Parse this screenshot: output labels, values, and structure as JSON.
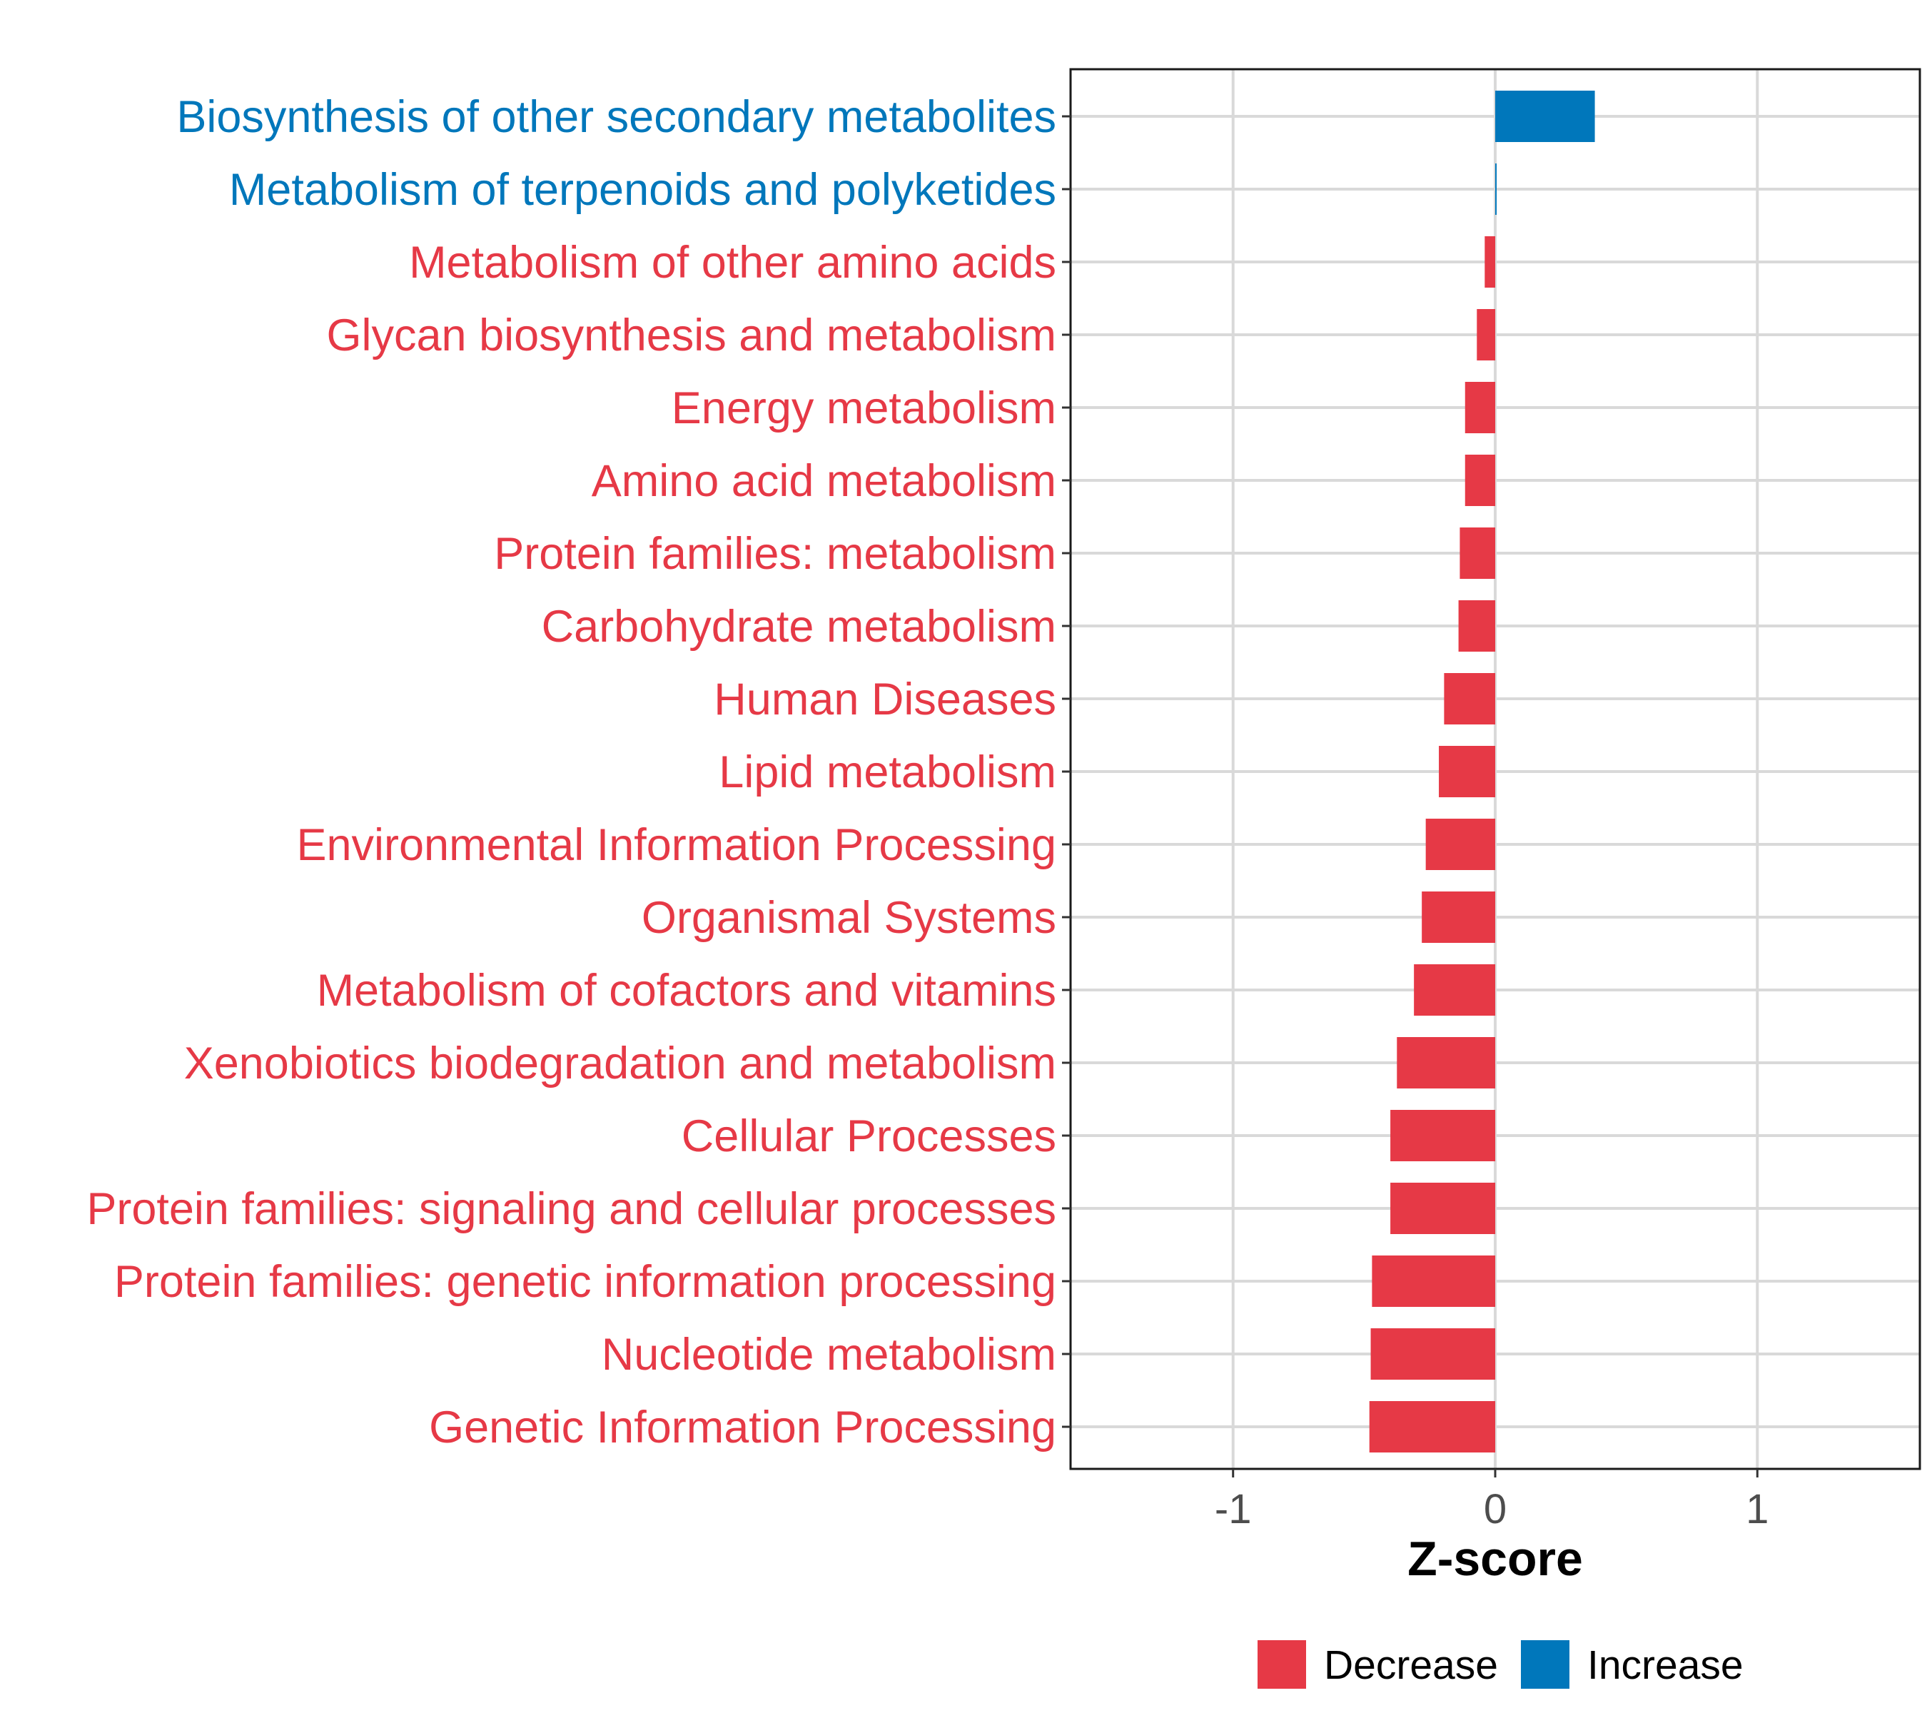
{
  "chart_data": {
    "type": "bar",
    "orientation": "horizontal",
    "title": "",
    "xlabel": "Z-score",
    "ylabel": "",
    "xlim": [
      -1.62,
      1.62
    ],
    "xticks": [
      -1,
      0,
      1
    ],
    "xtick_labels": [
      "-1",
      "0",
      "1"
    ],
    "grid": true,
    "legend_position": "bottom",
    "colors": {
      "Decrease": "#e63946",
      "Increase": "#0077bb"
    },
    "legend": [
      {
        "name": "Decrease",
        "color": "#e63946"
      },
      {
        "name": "Increase",
        "color": "#0077bb"
      }
    ],
    "categories": [
      "Biosynthesis of other secondary metabolites",
      "Metabolism of terpenoids and polyketides",
      "Metabolism of other amino acids",
      "Glycan biosynthesis and metabolism",
      "Energy metabolism",
      "Amino acid metabolism",
      "Protein families: metabolism",
      "Carbohydrate metabolism",
      "Human Diseases",
      "Lipid metabolism",
      "Environmental Information Processing",
      "Organismal Systems",
      "Metabolism of cofactors and vitamins",
      "Xenobiotics biodegradation and metabolism",
      "Cellular Processes",
      "Protein families: signaling and cellular processes",
      "Protein families: genetic information processing",
      "Nucleotide metabolism",
      "Genetic Information Processing"
    ],
    "values": [
      0.38,
      0.003,
      -0.04,
      -0.07,
      -0.115,
      -0.115,
      -0.135,
      -0.14,
      -0.195,
      -0.215,
      -0.265,
      -0.28,
      -0.31,
      -0.375,
      -0.4,
      -0.4,
      -0.47,
      -0.475,
      -0.48
    ],
    "groups": [
      "Increase",
      "Increase",
      "Decrease",
      "Decrease",
      "Decrease",
      "Decrease",
      "Decrease",
      "Decrease",
      "Decrease",
      "Decrease",
      "Decrease",
      "Decrease",
      "Decrease",
      "Decrease",
      "Decrease",
      "Decrease",
      "Decrease",
      "Decrease",
      "Decrease"
    ]
  }
}
